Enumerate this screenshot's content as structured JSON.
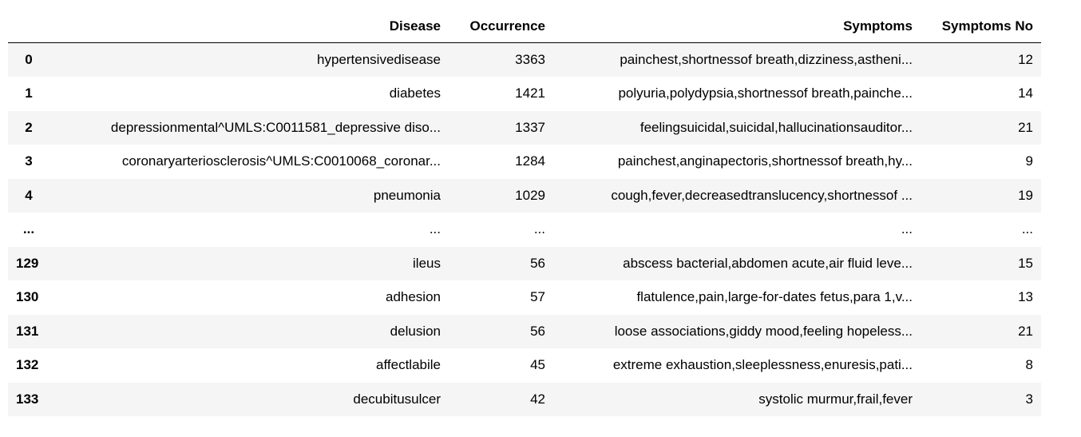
{
  "table": {
    "columns": [
      "",
      "Disease",
      "Occurrence",
      "Symptoms",
      "Symptoms No"
    ],
    "rows": [
      {
        "index": "0",
        "disease": "hypertensivedisease",
        "occurrence": "3363",
        "symptoms": "painchest,shortnessof breath,dizziness,astheni...",
        "symptoms_no": "12"
      },
      {
        "index": "1",
        "disease": "diabetes",
        "occurrence": "1421",
        "symptoms": "polyuria,polydypsia,shortnessof breath,painche...",
        "symptoms_no": "14"
      },
      {
        "index": "2",
        "disease": "depressionmental^UMLS:C0011581_depressive diso...",
        "occurrence": "1337",
        "symptoms": "feelingsuicidal,suicidal,hallucinationsauditor...",
        "symptoms_no": "21"
      },
      {
        "index": "3",
        "disease": "coronaryarteriosclerosis^UMLS:C0010068_coronar...",
        "occurrence": "1284",
        "symptoms": "painchest,anginapectoris,shortnessof breath,hy...",
        "symptoms_no": "9"
      },
      {
        "index": "4",
        "disease": "pneumonia",
        "occurrence": "1029",
        "symptoms": "cough,fever,decreasedtranslucency,shortnessof ...",
        "symptoms_no": "19"
      },
      {
        "index": "...",
        "disease": "...",
        "occurrence": "...",
        "symptoms": "...",
        "symptoms_no": "..."
      },
      {
        "index": "129",
        "disease": "ileus",
        "occurrence": "56",
        "symptoms": "abscess bacterial,abdomen acute,air fluid leve...",
        "symptoms_no": "15"
      },
      {
        "index": "130",
        "disease": "adhesion",
        "occurrence": "57",
        "symptoms": "flatulence,pain,large-for-dates fetus,para 1,v...",
        "symptoms_no": "13"
      },
      {
        "index": "131",
        "disease": "delusion",
        "occurrence": "56",
        "symptoms": "loose associations,giddy mood,feeling hopeless...",
        "symptoms_no": "21"
      },
      {
        "index": "132",
        "disease": "affectlabile",
        "occurrence": "45",
        "symptoms": "extreme exhaustion,sleeplessness,enuresis,pati...",
        "symptoms_no": "8"
      },
      {
        "index": "133",
        "disease": "decubitusulcer",
        "occurrence": "42",
        "symptoms": "systolic murmur,frail,fever",
        "symptoms_no": "3"
      }
    ]
  }
}
